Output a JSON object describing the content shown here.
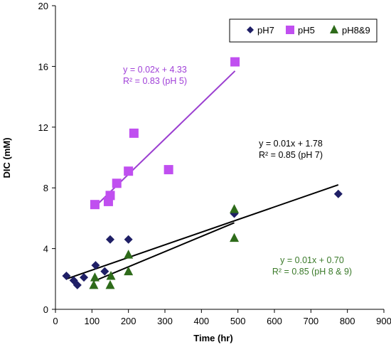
{
  "chart_data": {
    "type": "scatter",
    "xlabel": "Time (hr)",
    "ylabel": "DIC (mM)",
    "xlim": [
      0,
      900
    ],
    "ylim": [
      0,
      20
    ],
    "xticks": [
      0,
      100,
      200,
      300,
      400,
      500,
      600,
      700,
      800,
      900
    ],
    "yticks": [
      0,
      4,
      8,
      12,
      16,
      20
    ],
    "grid": false,
    "legend_position": "top-right",
    "series": [
      {
        "name": "pH7",
        "marker": "diamond",
        "color": "#1f1f66",
        "points": [
          [
            30,
            2.2
          ],
          [
            50,
            1.9
          ],
          [
            60,
            1.6
          ],
          [
            78,
            2.1
          ],
          [
            110,
            2.9
          ],
          [
            135,
            2.5
          ],
          [
            150,
            4.6
          ],
          [
            200,
            4.6
          ],
          [
            490,
            6.3
          ],
          [
            775,
            7.6
          ]
        ]
      },
      {
        "name": "pH5",
        "marker": "square",
        "color": "#c04ff0",
        "points": [
          [
            108,
            6.9
          ],
          [
            145,
            7.1
          ],
          [
            150,
            7.5
          ],
          [
            168,
            8.3
          ],
          [
            200,
            9.1
          ],
          [
            215,
            11.6
          ],
          [
            310,
            9.2
          ],
          [
            492,
            16.3
          ]
        ]
      },
      {
        "name": "pH8&9",
        "marker": "triangle",
        "color": "#2e6b1a",
        "points": [
          [
            105,
            1.6
          ],
          [
            108,
            2.1
          ],
          [
            150,
            1.6
          ],
          [
            152,
            2.2
          ],
          [
            200,
            2.5
          ],
          [
            200,
            3.6
          ],
          [
            490,
            6.6
          ],
          [
            490,
            4.7
          ]
        ]
      }
    ],
    "trendlines": [
      {
        "series": "pH5",
        "color": "#9b3fd0",
        "x": [
          108,
          492
        ],
        "y": [
          6.75,
          15.7
        ]
      },
      {
        "series": "pH7",
        "color": "#000000",
        "x": [
          30,
          775
        ],
        "y": [
          2.0,
          8.2
        ]
      },
      {
        "series": "pH8&9",
        "color": "#000000",
        "x": [
          105,
          490
        ],
        "y": [
          1.85,
          5.7
        ]
      }
    ],
    "annotations": [
      {
        "id": "ph5",
        "color": "#a040d8",
        "lines": [
          "y = 0.02x + 4.33",
          "R² = 0.83 (pH 5)"
        ]
      },
      {
        "id": "ph7",
        "color": "#000000",
        "lines": [
          "y = 0.01x + 1.78",
          "R² = 0.85 (pH 7)"
        ]
      },
      {
        "id": "ph89",
        "color": "#3b7a2a",
        "lines": [
          "y = 0.01x + 0.70",
          "R² = 0.85 (pH 8 & 9)"
        ]
      }
    ]
  }
}
